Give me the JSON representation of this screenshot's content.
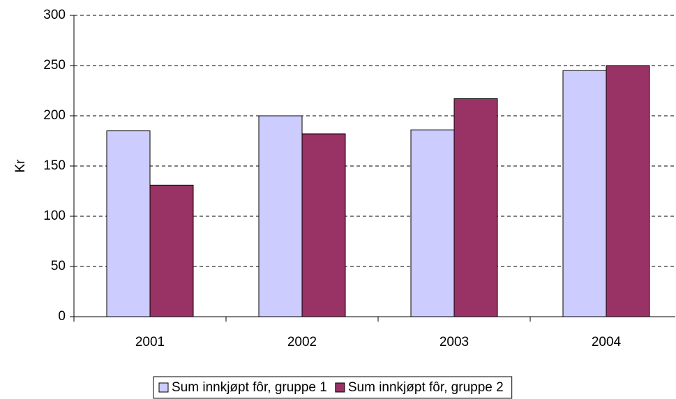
{
  "chart_data": {
    "type": "bar",
    "y_label": "Kr",
    "categories": [
      "2001",
      "2002",
      "2003",
      "2004"
    ],
    "series": [
      {
        "name": "Sum innkjøpt fôr, gruppe 1",
        "color": "#ccccff",
        "values": [
          185,
          200,
          186,
          245
        ]
      },
      {
        "name": "Sum innkjøpt fôr, gruppe 2",
        "color": "#993366",
        "values": [
          131,
          182,
          217,
          250
        ]
      }
    ],
    "ylim": [
      0,
      300
    ],
    "yticks": [
      0,
      50,
      100,
      150,
      200,
      250,
      300
    ],
    "grid": true,
    "legend": "bottom"
  }
}
